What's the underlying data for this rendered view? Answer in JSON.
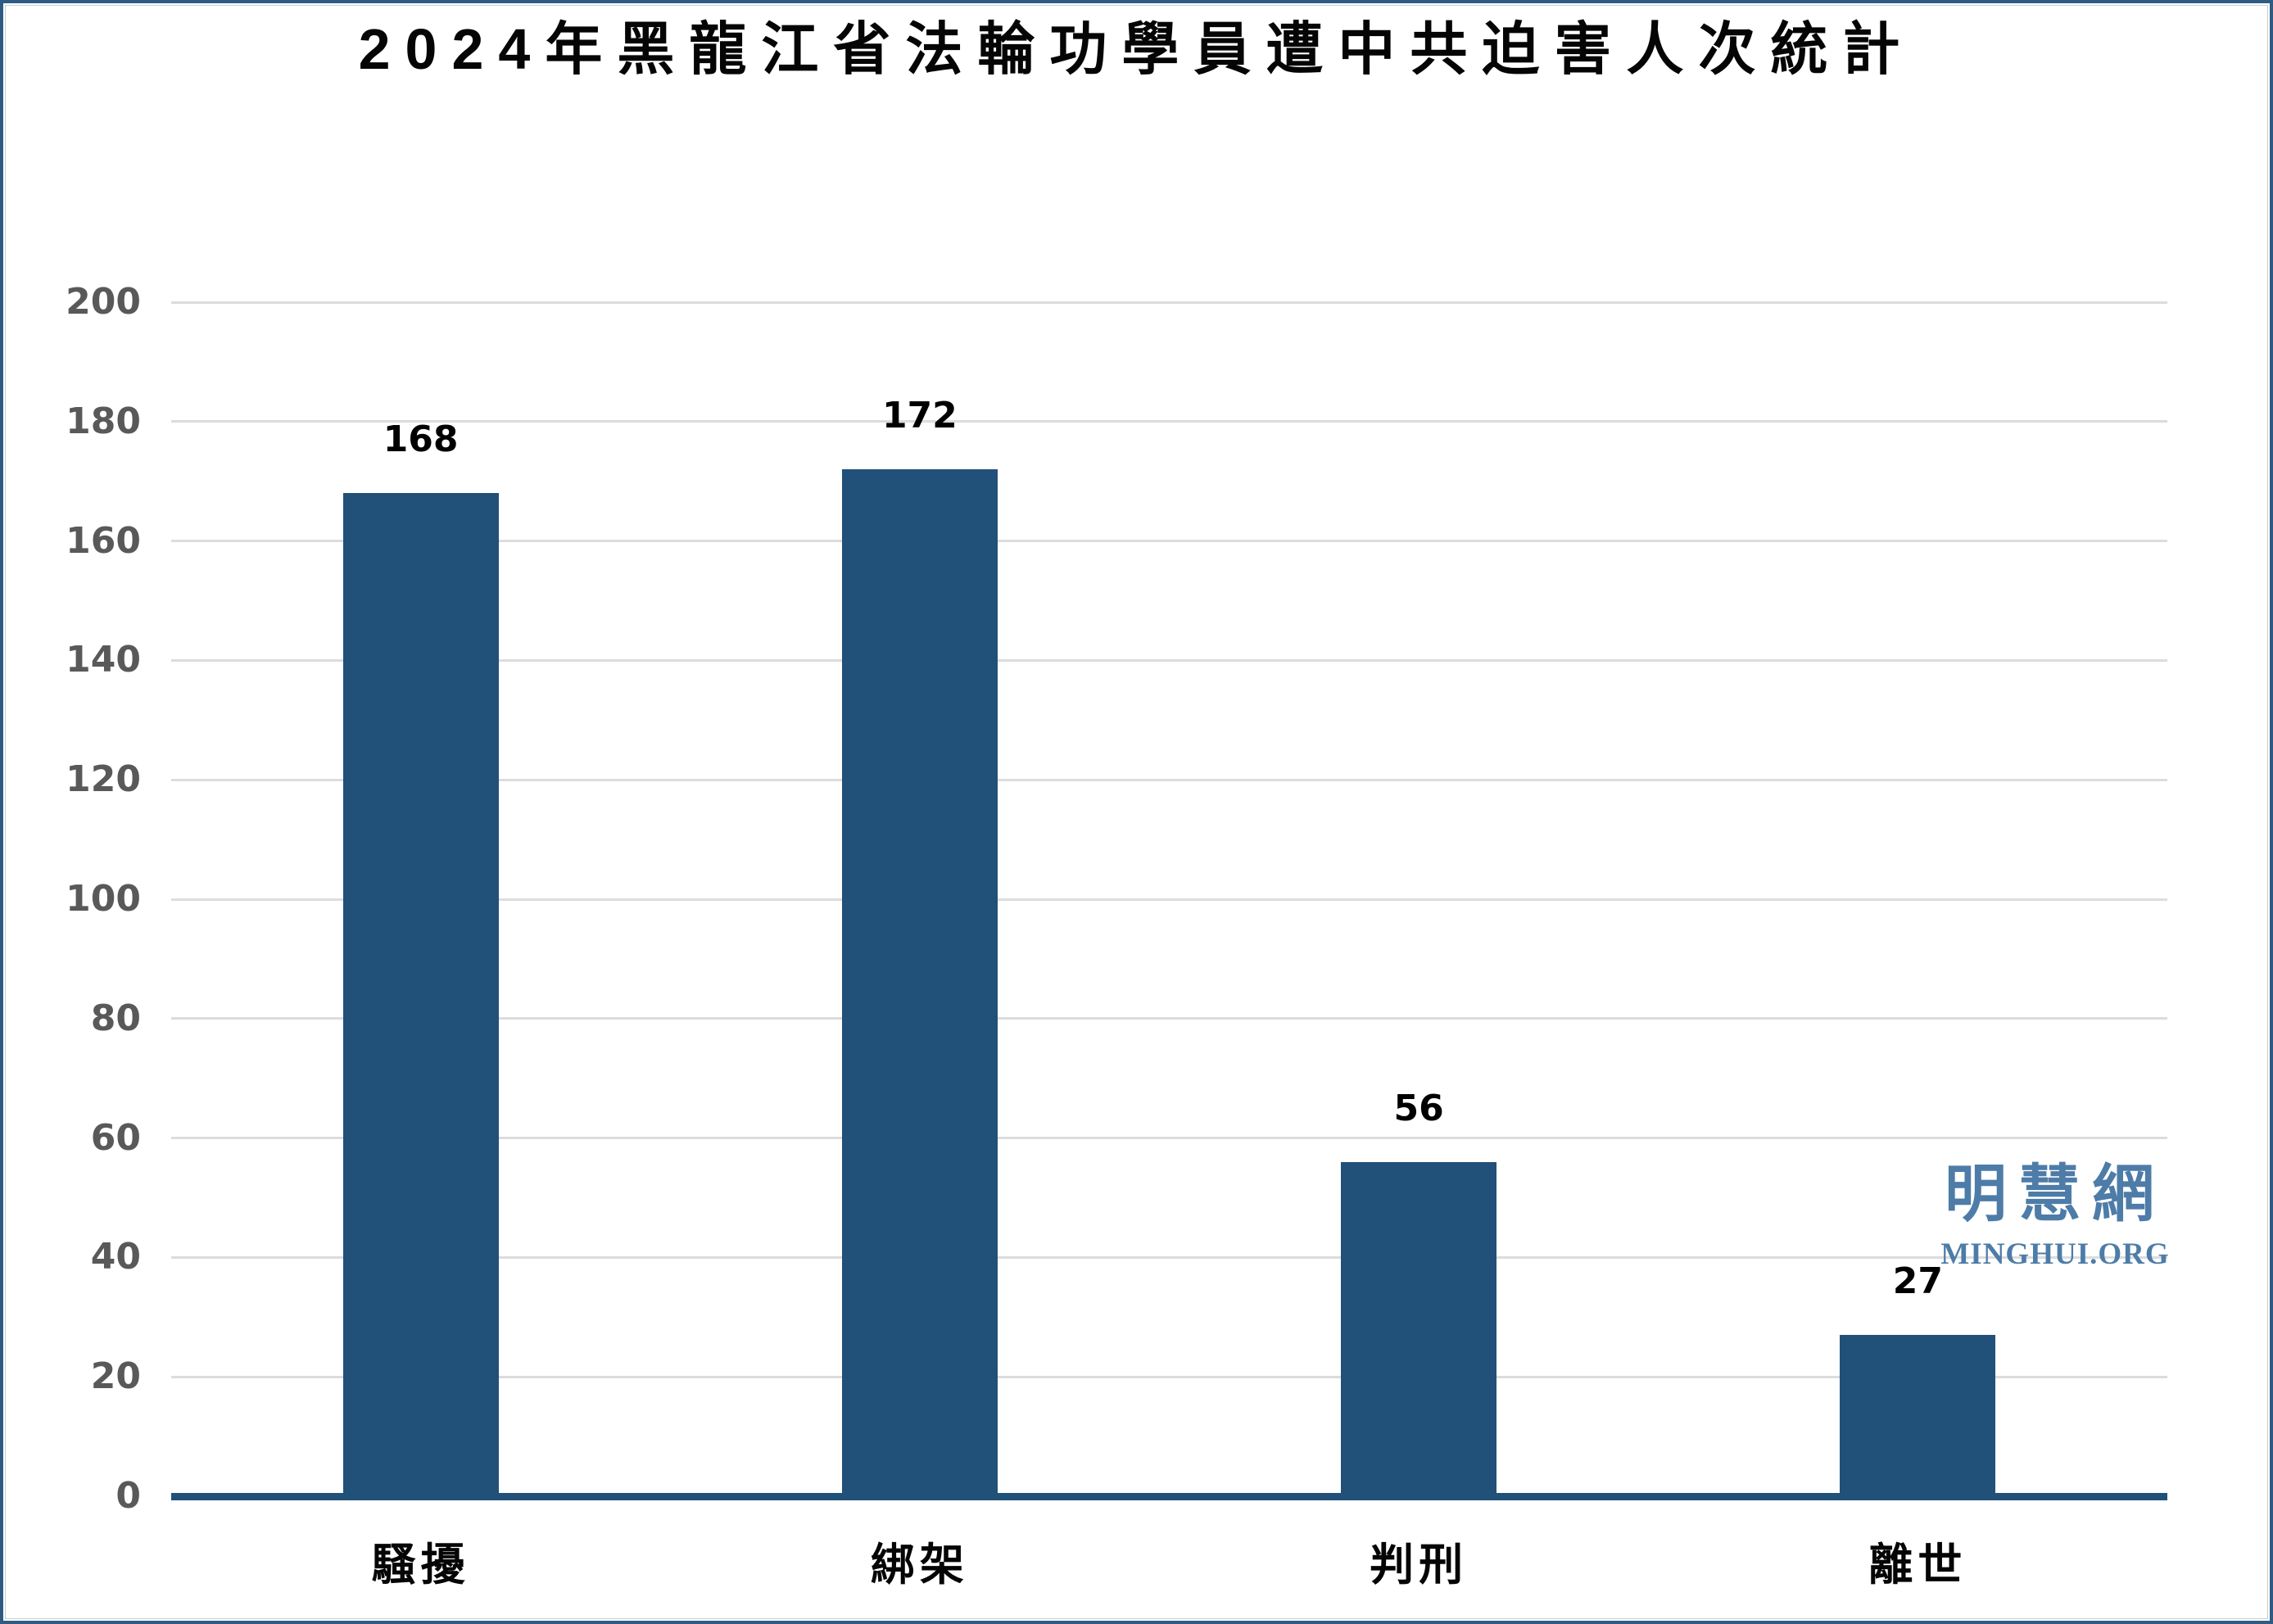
{
  "title": "2024年黑龍江省法輪功學員遭中共迫害人次統計",
  "watermark": {
    "cjk": "明慧網",
    "latin": "MINGHUI.ORG",
    "color": "#4E7CA8"
  },
  "chart_data": {
    "type": "bar",
    "title": "2024年黑龍江省法輪功學員遭中共迫害人次統計",
    "categories": [
      "騷擾",
      "綁架",
      "判刑",
      "離世"
    ],
    "values": [
      168,
      172,
      56,
      27
    ],
    "value_labels": [
      "168",
      "172",
      "56",
      "27"
    ],
    "ylim": [
      0,
      200
    ],
    "ytick_step": 20,
    "ytick_labels": [
      "0",
      "20",
      "40",
      "60",
      "80",
      "100",
      "120",
      "140",
      "160",
      "180",
      "200"
    ],
    "grid": true,
    "legend": "none",
    "bar_color": "#215078",
    "axis_line_color": "#215078",
    "gridline_color": "#DCDCDC",
    "tick_label_color": "#595959",
    "value_label_color": "#000000",
    "frame_border_color": "#2E5B84"
  }
}
